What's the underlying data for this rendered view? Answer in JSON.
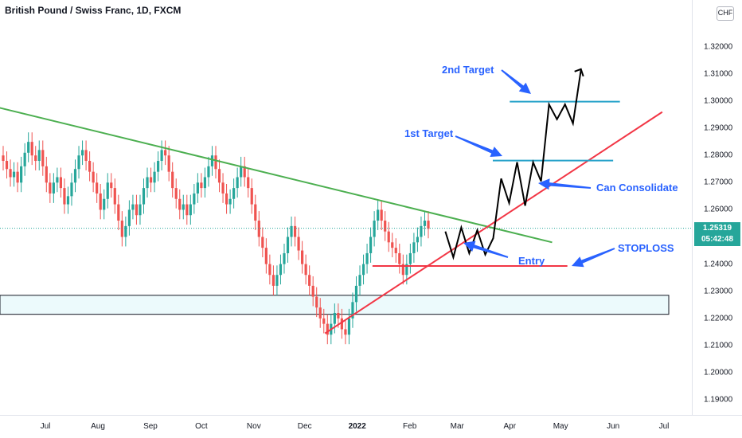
{
  "header": {
    "title": "British Pound / Swiss Franc, 1D, FXCM"
  },
  "price_scale": {
    "currency_label": "CHF",
    "ticks": [
      "1.32000",
      "1.31000",
      "1.30000",
      "1.29000",
      "1.28000",
      "1.27000",
      "1.26000",
      "1.24000",
      "1.23000",
      "1.22000",
      "1.21000",
      "1.20000",
      "1.19000"
    ],
    "current_price": "1.25319",
    "countdown": "05:42:48"
  },
  "time_scale": {
    "ticks": [
      "Jul",
      "Aug",
      "Sep",
      "Oct",
      "Nov",
      "Dec",
      "2022",
      "Feb",
      "Mar",
      "Apr",
      "May",
      "Jun",
      "Jul"
    ]
  },
  "annotations": {
    "second_target": "2nd Target",
    "first_target": "1st Target",
    "can_consolidate": "Can Consolidate",
    "stoploss": "STOPLOSS",
    "entry": "Entry"
  },
  "colors": {
    "up": "#26a69a",
    "down": "#ef5350",
    "downtrend": "#4caf50",
    "uptrend": "#f23645",
    "target_line": "#26a2c9",
    "stop_line": "#f23645",
    "annotation_text": "#2962ff",
    "arrow": "#2962ff",
    "projection": "#000000",
    "support_zone": "#e0f7fa"
  },
  "chart_data": {
    "type": "candlestick",
    "symbol": "GBPCHF",
    "timeframe": "1D",
    "ylim": [
      1.185,
      1.335
    ],
    "y_ticks": [
      1.32,
      1.31,
      1.3,
      1.29,
      1.28,
      1.27,
      1.26,
      1.24,
      1.23,
      1.22,
      1.21,
      1.2,
      1.19
    ],
    "current_price": 1.25319,
    "candles_close_approx": [
      1.278,
      1.275,
      1.272,
      1.274,
      1.27,
      1.276,
      1.281,
      1.285,
      1.28,
      1.278,
      1.282,
      1.276,
      1.27,
      1.266,
      1.27,
      1.272,
      1.268,
      1.262,
      1.265,
      1.27,
      1.275,
      1.28,
      1.282,
      1.278,
      1.274,
      1.27,
      1.266,
      1.26,
      1.264,
      1.27,
      1.268,
      1.262,
      1.256,
      1.25,
      1.254,
      1.26,
      1.262,
      1.258,
      1.262,
      1.268,
      1.272,
      1.27,
      1.274,
      1.278,
      1.282,
      1.28,
      1.274,
      1.268,
      1.264,
      1.26,
      1.262,
      1.258,
      1.262,
      1.266,
      1.27,
      1.268,
      1.272,
      1.276,
      1.28,
      1.275,
      1.27,
      1.266,
      1.262,
      1.264,
      1.268,
      1.272,
      1.276,
      1.272,
      1.268,
      1.262,
      1.256,
      1.25,
      1.246,
      1.24,
      1.236,
      1.232,
      1.236,
      1.24,
      1.244,
      1.25,
      1.254,
      1.25,
      1.245,
      1.24,
      1.236,
      1.232,
      1.228,
      1.224,
      1.22,
      1.218,
      1.214,
      1.218,
      1.222,
      1.22,
      1.216,
      1.214,
      1.22,
      1.226,
      1.232,
      1.236,
      1.24,
      1.244,
      1.25,
      1.256,
      1.26,
      1.256,
      1.252,
      1.248,
      1.246,
      1.244,
      1.24,
      1.236,
      1.24,
      1.244,
      1.248,
      1.25,
      1.254,
      1.256,
      1.253
    ],
    "support_zone": [
      1.2215,
      1.2285
    ],
    "downtrend_line": {
      "from": {
        "date": "2021-06-01",
        "price": 1.298
      },
      "to": {
        "date": "2022-04-26",
        "price": 1.248
      }
    },
    "uptrend_line": {
      "from": {
        "date": "2021-12-13",
        "price": 1.2145
      },
      "to": {
        "date": "2022-06-30",
        "price": 1.296
      }
    },
    "second_target": 1.2998,
    "first_target": 1.2781,
    "stoploss": 1.2393,
    "projection_path": [
      1.252,
      1.2425,
      1.2535,
      1.244,
      1.2525,
      1.2435,
      1.2495,
      1.2715,
      1.2625,
      1.2775,
      1.2615,
      1.2775,
      1.2705,
      1.2988,
      1.2933,
      1.2988,
      1.2918,
      1.3115
    ],
    "time_ticks": [
      "Jul",
      "Aug",
      "Sep",
      "Oct",
      "Nov",
      "Dec",
      "2022",
      "Feb",
      "Mar",
      "Apr",
      "May",
      "Jun",
      "Jul"
    ]
  }
}
